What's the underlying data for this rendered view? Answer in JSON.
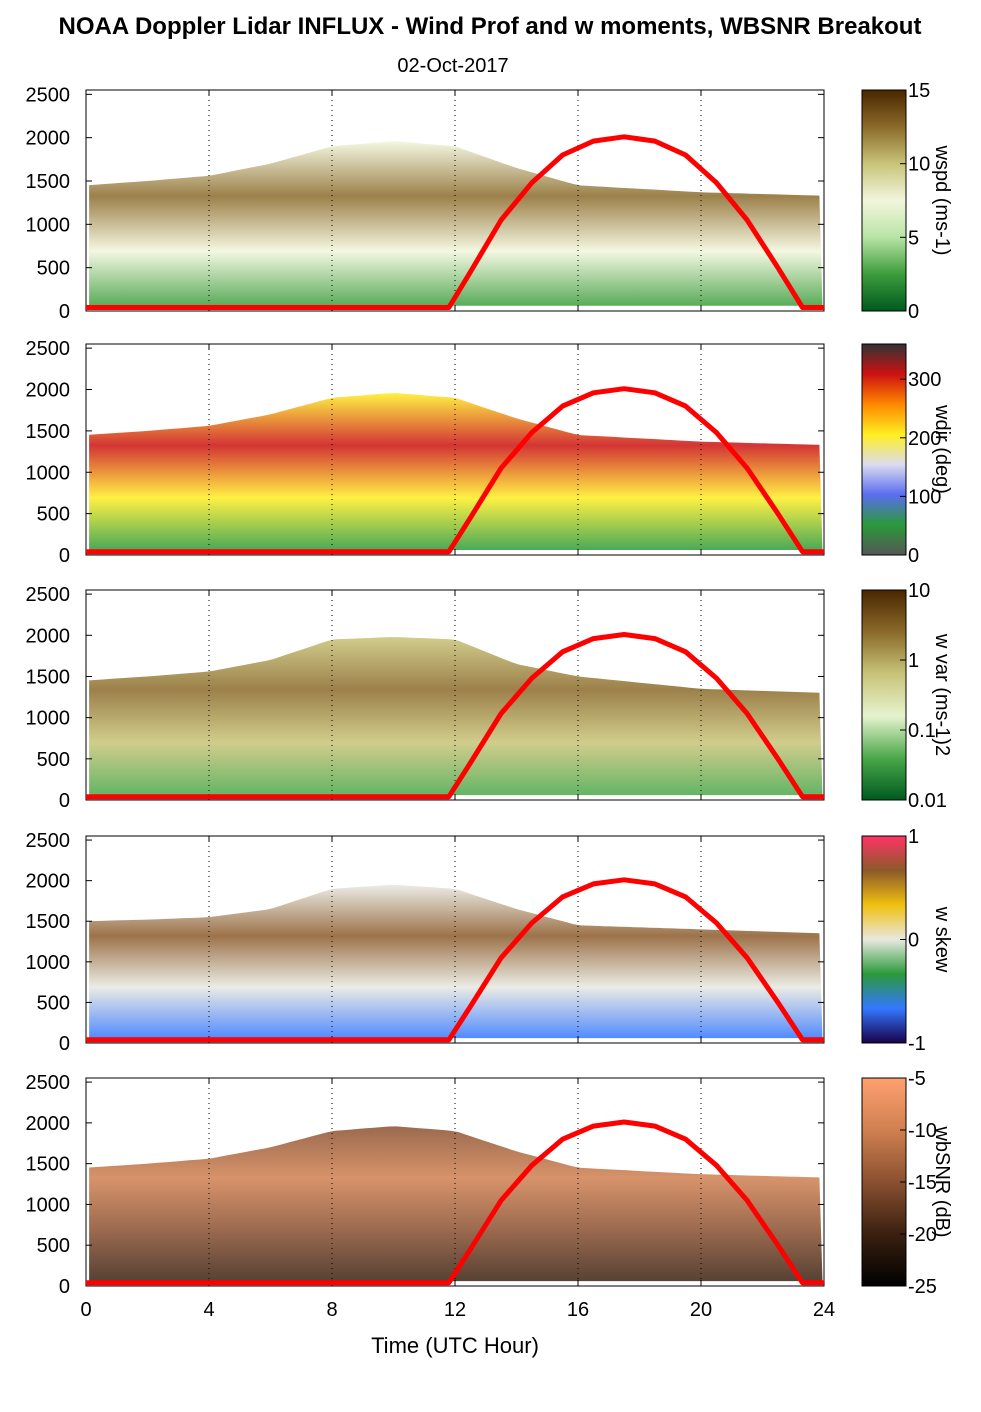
{
  "title": "NOAA Doppler Lidar INFLUX - Wind Prof and w moments, WBSNR Breakout",
  "subtitle": "02-Oct-2017",
  "colors": {
    "sun_curve": "#ff0000",
    "wspd_scale": [
      "#005a1e",
      "#3c9d3c",
      "#b8e3a6",
      "#f2f6dc",
      "#c8c478",
      "#8b6a2a",
      "#4a2600"
    ],
    "wdir_scale": [
      "#555555",
      "#2a9a3a",
      "#5a6df0",
      "#dcdcf0",
      "#ffee22",
      "#ff8800",
      "#cc1111",
      "#333333"
    ],
    "wvar_scale": [
      "#005a1e",
      "#4aa84a",
      "#e6f3cf",
      "#c8c478",
      "#8b6a2a",
      "#4a2600"
    ],
    "wskew_scale": [
      "#1a004a",
      "#3377ff",
      "#2a9a3a",
      "#e8e8e0",
      "#f0c010",
      "#8b5a2a",
      "#ff3366"
    ],
    "wbsnr_scale": [
      "#000000",
      "#3a2010",
      "#8a5030",
      "#d08050",
      "#ffa070"
    ]
  },
  "chart_data": {
    "type": "heatmap",
    "title": "NOAA Doppler Lidar INFLUX - Wind Prof and w moments, WBSNR Breakout",
    "subtitle": "02-Oct-2017",
    "xlabel": "Time (UTC Hour)",
    "xlim": [
      0,
      24
    ],
    "x_ticks": [
      "0",
      "4",
      "8",
      "12",
      "16",
      "20",
      "24"
    ],
    "y_ticks": [
      "0",
      "500",
      "1000",
      "1500",
      "2000",
      "2500"
    ],
    "ylim": [
      0,
      2550
    ],
    "grid": "dotted vertical lines at 4-hour intervals",
    "overlay": {
      "name": "solar elevation (red curve)",
      "x": [
        0,
        11.8,
        12.5,
        13.5,
        14.5,
        15.5,
        16.5,
        17.5,
        18.5,
        19.5,
        20.5,
        21.5,
        22.5,
        23.3,
        24
      ],
      "y": [
        40,
        40,
        450,
        1050,
        1480,
        1800,
        1960,
        2010,
        1960,
        1800,
        1480,
        1050,
        500,
        40,
        40
      ]
    },
    "panels": [
      {
        "colorbar_label": "wspd (ms-1)",
        "colorbar_ticks": [
          "0",
          "5",
          "10",
          "15"
        ],
        "zlim": [
          0,
          15
        ],
        "top_height": [
          [
            0,
            1450
          ],
          [
            2,
            1500
          ],
          [
            4,
            1560
          ],
          [
            6,
            1700
          ],
          [
            8,
            1900
          ],
          [
            10,
            1960
          ],
          [
            12,
            1900
          ],
          [
            14,
            1650
          ],
          [
            16,
            1450
          ],
          [
            20,
            1370
          ],
          [
            24,
            1330
          ]
        ]
      },
      {
        "colorbar_label": "wdir (deg)",
        "colorbar_ticks": [
          "0",
          "100",
          "200",
          "300"
        ],
        "zlim": [
          0,
          360
        ],
        "top_height": [
          [
            0,
            1450
          ],
          [
            2,
            1500
          ],
          [
            4,
            1560
          ],
          [
            6,
            1700
          ],
          [
            8,
            1900
          ],
          [
            10,
            1960
          ],
          [
            12,
            1900
          ],
          [
            14,
            1650
          ],
          [
            16,
            1450
          ],
          [
            20,
            1370
          ],
          [
            24,
            1330
          ]
        ]
      },
      {
        "colorbar_label": "w var (ms-1)2",
        "colorbar_ticks": [
          "0.01",
          "0.1",
          "1",
          "10"
        ],
        "zlim": [
          0.01,
          10
        ],
        "log_scale": true,
        "top_height": [
          [
            0,
            1450
          ],
          [
            2,
            1500
          ],
          [
            4,
            1560
          ],
          [
            6,
            1700
          ],
          [
            8,
            1950
          ],
          [
            10,
            1980
          ],
          [
            12,
            1950
          ],
          [
            14,
            1650
          ],
          [
            16,
            1500
          ],
          [
            20,
            1350
          ],
          [
            24,
            1300
          ]
        ]
      },
      {
        "colorbar_label": "w skew",
        "colorbar_ticks": [
          "-1",
          "0",
          "1"
        ],
        "zlim": [
          -1,
          1
        ],
        "top_height": [
          [
            0,
            1500
          ],
          [
            2,
            1520
          ],
          [
            4,
            1550
          ],
          [
            6,
            1650
          ],
          [
            8,
            1900
          ],
          [
            10,
            1950
          ],
          [
            12,
            1900
          ],
          [
            14,
            1650
          ],
          [
            16,
            1450
          ],
          [
            20,
            1400
          ],
          [
            24,
            1350
          ]
        ]
      },
      {
        "colorbar_label": "wbSNR (dB)",
        "colorbar_ticks": [
          "-5",
          "-10",
          "-15",
          "-20",
          "-25"
        ],
        "zlim": [
          -25,
          -5
        ],
        "top_height": [
          [
            0,
            1450
          ],
          [
            2,
            1500
          ],
          [
            4,
            1560
          ],
          [
            6,
            1700
          ],
          [
            8,
            1900
          ],
          [
            10,
            1960
          ],
          [
            12,
            1900
          ],
          [
            14,
            1650
          ],
          [
            16,
            1450
          ],
          [
            20,
            1370
          ],
          [
            24,
            1330
          ]
        ]
      }
    ]
  }
}
